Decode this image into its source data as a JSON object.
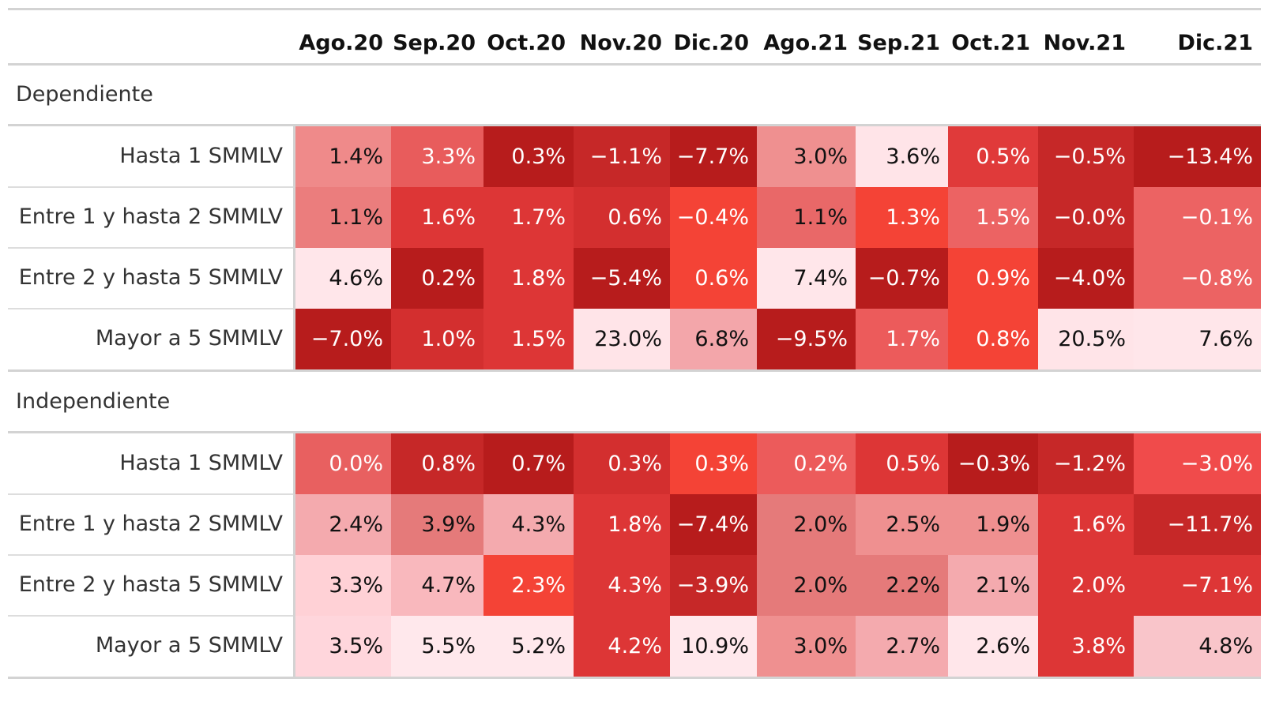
{
  "chart_data": {
    "type": "heatmap",
    "columns": [
      "Ago.20",
      "Sep.20",
      "Oct.20",
      "Nov.20",
      "Dic.20",
      "Ago.21",
      "Sep.21",
      "Oct.21",
      "Nov.21",
      "Dic.21"
    ],
    "groups": [
      {
        "name": "Dependiente",
        "rows": [
          {
            "label": "Hasta 1 SMMLV",
            "values": [
              "1.4%",
              "3.3%",
              "0.3%",
              "−1.1%",
              "−7.7%",
              "3.0%",
              "3.6%",
              "0.5%",
              "−0.5%",
              "−13.4%"
            ],
            "colors": [
              "#ef8a8a",
              "#e85c5c",
              "#b71c1c",
              "#c62828",
              "#b71c1c",
              "#ef9090",
              "#ffe4e8",
              "#e03a3a",
              "#c62828",
              "#b71c1c"
            ]
          },
          {
            "label": "Entre 1 y hasta 2 SMMLV",
            "values": [
              "1.1%",
              "1.6%",
              "1.7%",
              "0.6%",
              "−0.4%",
              "1.1%",
              "1.3%",
              "1.5%",
              "−0.0%",
              "−0.1%"
            ],
            "colors": [
              "#eb7d7d",
              "#dd3636",
              "#dd3636",
              "#d32f2f",
              "#f44336",
              "#e96868",
              "#f44336",
              "#ec6363",
              "#c62828",
              "#ec6363"
            ]
          },
          {
            "label": "Entre 2 y hasta 5 SMMLV",
            "values": [
              "4.6%",
              "0.2%",
              "1.8%",
              "−5.4%",
              "0.6%",
              "7.4%",
              "−0.7%",
              "0.9%",
              "−4.0%",
              "−0.8%"
            ],
            "colors": [
              "#ffe6ea",
              "#b71c1c",
              "#dd3636",
              "#b71c1c",
              "#f44336",
              "#ffe6ea",
              "#b71c1c",
              "#f44336",
              "#b71c1c",
              "#ec6363"
            ]
          },
          {
            "label": "Mayor a 5 SMMLV",
            "values": [
              "−7.0%",
              "1.0%",
              "1.5%",
              "23.0%",
              "6.8%",
              "−9.5%",
              "1.7%",
              "0.8%",
              "20.5%",
              "7.6%"
            ],
            "colors": [
              "#b71c1c",
              "#d32f2f",
              "#dd3636",
              "#ffe4e8",
              "#f3a6aa",
              "#b71c1c",
              "#ec5b5b",
              "#f44336",
              "#ffe4e8",
              "#ffe6ea"
            ]
          }
        ]
      },
      {
        "name": "Independiente",
        "rows": [
          {
            "label": "Hasta 1 SMMLV",
            "values": [
              "0.0%",
              "0.8%",
              "0.7%",
              "0.3%",
              "0.3%",
              "0.2%",
              "0.5%",
              "−0.3%",
              "−1.2%",
              "−3.0%"
            ],
            "colors": [
              "#e86060",
              "#c62828",
              "#b71c1c",
              "#d32f2f",
              "#f44336",
              "#ec5b5b",
              "#dd3636",
              "#b71c1c",
              "#c62828",
              "#f04b4b"
            ]
          },
          {
            "label": "Entre 1 y hasta 2 SMMLV",
            "values": [
              "2.4%",
              "3.9%",
              "4.3%",
              "1.8%",
              "−7.4%",
              "2.0%",
              "2.5%",
              "1.9%",
              "1.6%",
              "−11.7%"
            ],
            "colors": [
              "#f4aaae",
              "#e57a7a",
              "#f4aaae",
              "#dd3636",
              "#b71c1c",
              "#e57a7a",
              "#ef9090",
              "#ef9090",
              "#dd3636",
              "#c62828"
            ]
          },
          {
            "label": "Entre 2 y hasta 5 SMMLV",
            "values": [
              "3.3%",
              "4.7%",
              "2.3%",
              "4.3%",
              "−3.9%",
              "2.0%",
              "2.2%",
              "2.1%",
              "2.0%",
              "−7.1%"
            ],
            "colors": [
              "#ffd1d6",
              "#f9b8bd",
              "#f44336",
              "#dd3636",
              "#c62828",
              "#e57a7a",
              "#e57a7a",
              "#f4aaae",
              "#dd3636",
              "#dd3636"
            ]
          },
          {
            "label": "Mayor a 5 SMMLV",
            "values": [
              "3.5%",
              "5.5%",
              "5.2%",
              "4.2%",
              "10.9%",
              "3.0%",
              "2.7%",
              "2.6%",
              "3.8%",
              "4.8%"
            ],
            "colors": [
              "#ffd6dc",
              "#ffe8ec",
              "#ffe8ec",
              "#dd3636",
              "#ffe8ec",
              "#ef9090",
              "#f4aaae",
              "#ffe6ea",
              "#dd3636",
              "#f9c5ca"
            ]
          }
        ]
      }
    ],
    "dark_text_colors": [
      "#ffe4e8",
      "#ffe6ea",
      "#ffe8ec",
      "#ffd1d6",
      "#ffd6dc",
      "#f9b8bd",
      "#f9c5ca",
      "#f4aaae",
      "#f3a6aa",
      "#ef9090",
      "#ef8a8a",
      "#eb7d7d",
      "#e57a7a",
      "#e96868"
    ],
    "text_dark": "#111111",
    "text_light": "#ffffff"
  }
}
